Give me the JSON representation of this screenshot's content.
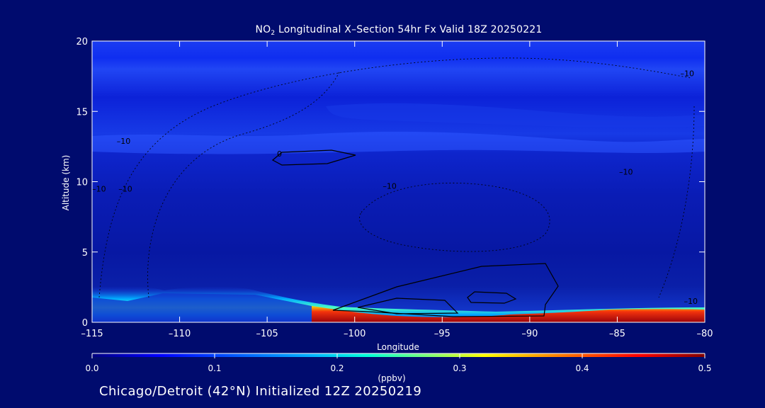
{
  "title": {
    "prefix": "NO",
    "subscript": "2",
    "suffix": " Longitudinal X–Section 54hr  Fx Valid 18Z 20250221"
  },
  "footer": "Chicago/Detroit (42°N) Initialized 12Z 20250219",
  "colors": {
    "background": "#000b6e",
    "axis": "#ffffff",
    "contour": "#000000"
  },
  "chart_data": {
    "type": "heatmap",
    "xlabel": "Longitude",
    "ylabel": "Altitude (km)",
    "xlim": [
      -115,
      -80
    ],
    "ylim": [
      0,
      20
    ],
    "x_ticks": [
      -115,
      -110,
      -105,
      -100,
      -95,
      -90,
      -85,
      -80
    ],
    "x_tick_labels": [
      "–115",
      "–110",
      "–105",
      "–100",
      "–95",
      "–90",
      "–85",
      "–80"
    ],
    "y_ticks": [
      0,
      5,
      10,
      15,
      20
    ],
    "y_tick_labels": [
      "0",
      "5",
      "10",
      "15",
      "20"
    ],
    "colorbar": {
      "label": "(ppbv)",
      "min": 0.0,
      "max": 0.5,
      "ticks": [
        0.0,
        0.1,
        0.2,
        0.3,
        0.4,
        0.5
      ],
      "tick_labels": [
        "0.0",
        "0.1",
        "0.2",
        "0.3",
        "0.4",
        "0.5"
      ]
    },
    "contour_labels": [
      {
        "text": "–10",
        "lon": -113.2,
        "alt": 12.7
      },
      {
        "text": "–10",
        "lon": -81.0,
        "alt": 17.5
      },
      {
        "text": "–10",
        "lon": -98.0,
        "alt": 9.5
      },
      {
        "text": "–10",
        "lon": -80.8,
        "alt": 1.3
      },
      {
        "text": "–10",
        "lon": -114.6,
        "alt": 9.3
      },
      {
        "text": "–10",
        "lon": -113.1,
        "alt": 9.3
      },
      {
        "text": "–10",
        "lon": -84.5,
        "alt": 10.5
      },
      {
        "text": "0",
        "lon": -104.3,
        "alt": 11.8
      }
    ]
  }
}
